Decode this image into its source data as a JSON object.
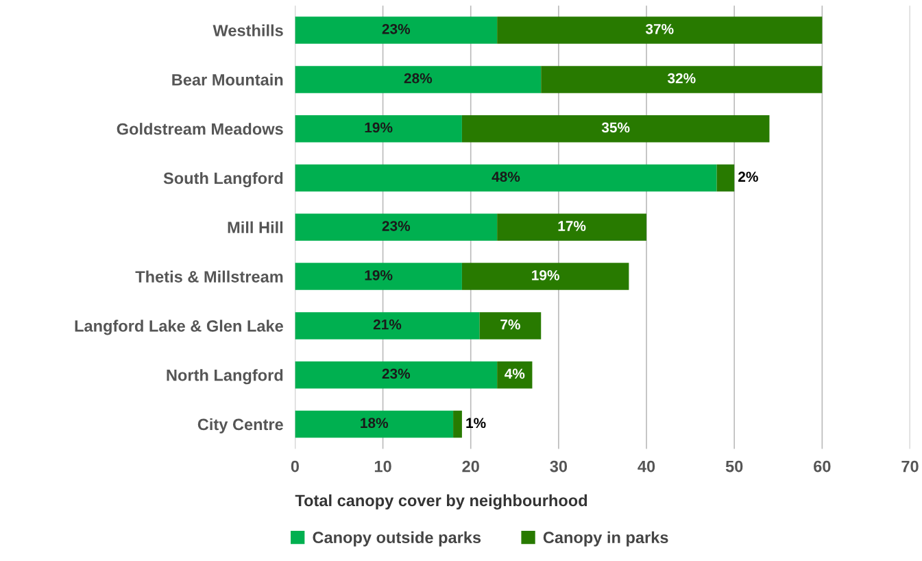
{
  "chart_data": {
    "type": "bar",
    "orientation": "horizontal",
    "stacked": true,
    "xlabel": "Total canopy cover by neighbourhood",
    "categories": [
      "Westhills",
      "Bear Mountain",
      "Goldstream Meadows",
      "South Langford",
      "Mill Hill",
      "Thetis & Millstream",
      "Langford Lake & Glen Lake",
      "North Langford",
      "City Centre"
    ],
    "series": [
      {
        "name": "Canopy outside parks",
        "color": "#00b050",
        "values": [
          23,
          28,
          19,
          48,
          23,
          19,
          21,
          23,
          18
        ],
        "value_labels": [
          "23%",
          "28%",
          "19%",
          "48%",
          "23%",
          "19%",
          "21%",
          "23%",
          "18%"
        ]
      },
      {
        "name": "Canopy in parks",
        "color": "#287a00",
        "values": [
          37,
          32,
          35,
          2,
          17,
          19,
          7,
          4,
          1
        ],
        "value_labels": [
          "37%",
          "32%",
          "35%",
          "2%",
          "17%",
          "19%",
          "7%",
          "4%",
          "1%"
        ]
      }
    ],
    "xlim": [
      0,
      70
    ],
    "xticks": [
      0,
      10,
      20,
      30,
      40,
      50,
      60,
      70
    ],
    "grid": "x",
    "legend": "bottom"
  }
}
